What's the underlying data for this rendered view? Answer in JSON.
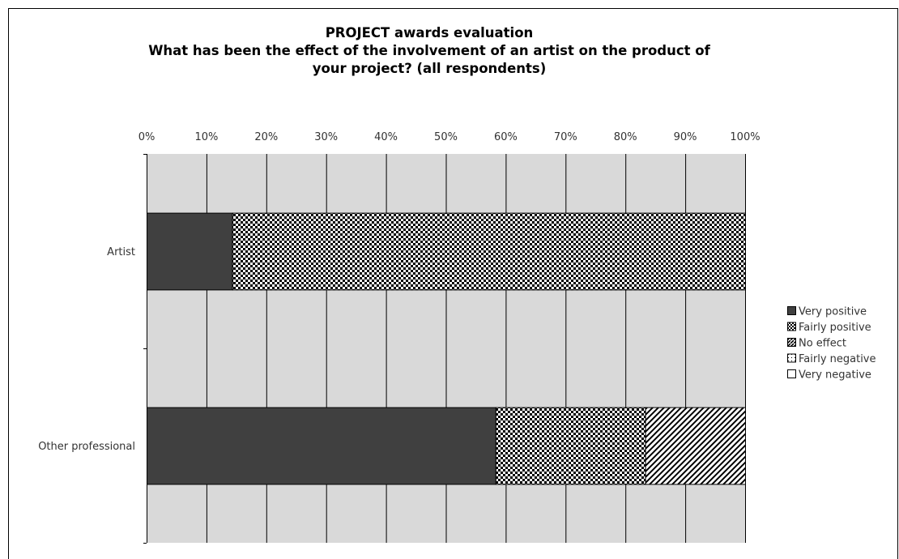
{
  "chart_data": {
    "type": "bar",
    "orientation": "horizontal",
    "stacked": true,
    "percent": true,
    "title_lines": [
      "PROJECT awards evaluation",
      "What has been the effect of the involvement of an artist on the product of",
      "your project? (all respondents)"
    ],
    "categories": [
      "Artist",
      "Other professional"
    ],
    "series": [
      {
        "name": "Very positive",
        "values": [
          14.3,
          58.3
        ],
        "color": "#404040",
        "pattern": "solid"
      },
      {
        "name": "Fairly positive",
        "values": [
          85.7,
          25.0
        ],
        "color": "#000000",
        "pattern": "checker"
      },
      {
        "name": "No effect",
        "values": [
          0,
          16.7
        ],
        "color": "#000000",
        "pattern": "diagonal"
      },
      {
        "name": "Fairly negative",
        "values": [
          0,
          0
        ],
        "color": "#000000",
        "pattern": "dotted"
      },
      {
        "name": "Very negative",
        "values": [
          0,
          0
        ],
        "color": "#ffffff",
        "pattern": "empty"
      }
    ],
    "xlim": [
      0,
      100
    ],
    "x_ticks": [
      "0%",
      "10%",
      "20%",
      "30%",
      "40%",
      "50%",
      "60%",
      "70%",
      "80%",
      "90%",
      "100%"
    ],
    "x_axis_position": "top",
    "grid": true,
    "plot_background": "#d9d9d9",
    "legend_position": "right"
  }
}
